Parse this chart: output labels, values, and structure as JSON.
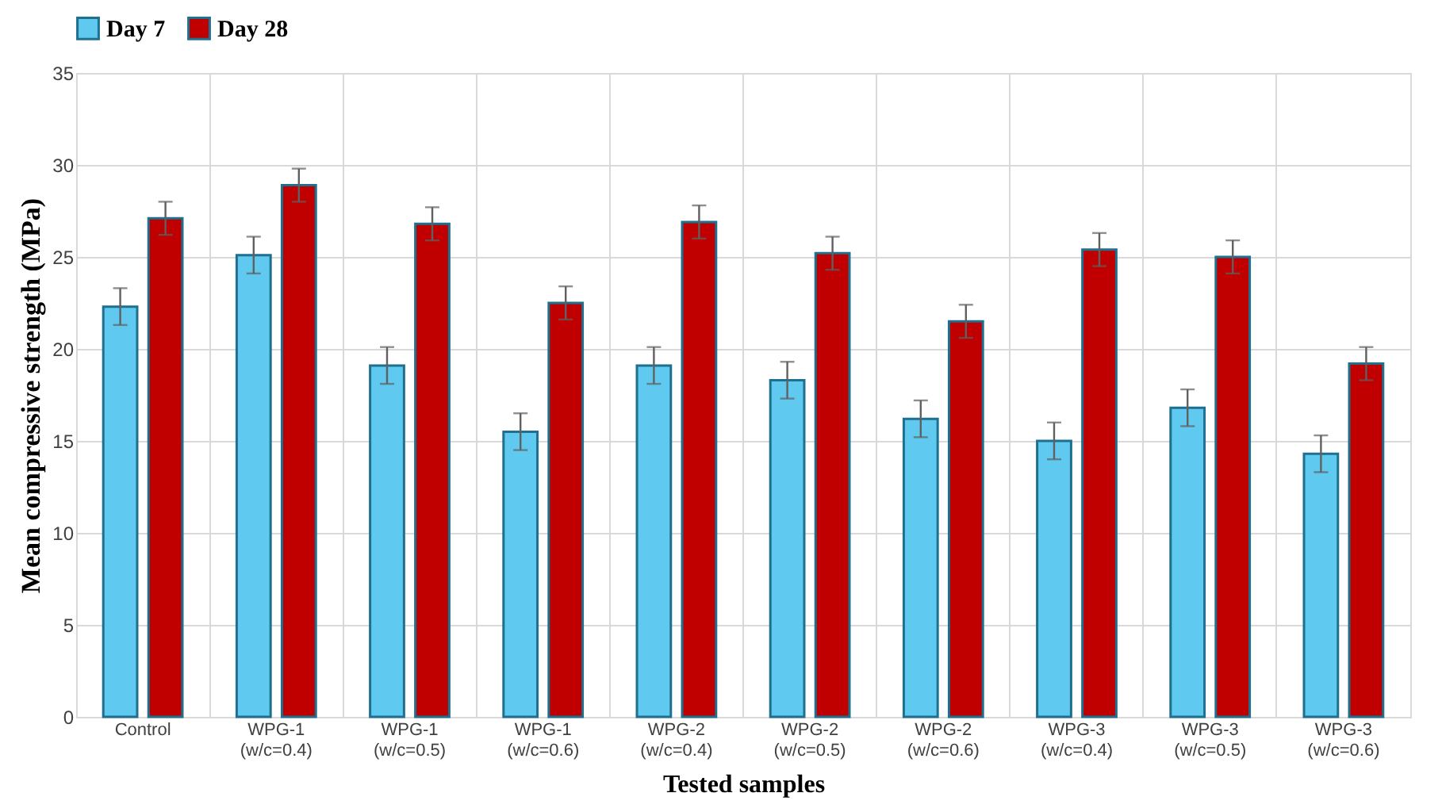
{
  "chart_data": {
    "type": "bar",
    "xlabel": "Tested samples",
    "ylabel": "Mean compressive strength (MPa)",
    "categories": [
      "Control",
      "WPG-1 (w/c=0.4)",
      "WPG-1 (w/c=0.5)",
      "WPG-1 (w/c=0.6)",
      "WPG-2 (w/c=0.4)",
      "WPG-2 (w/c=0.5)",
      "WPG-2 (w/c=0.6)",
      "WPG-3 (w/c=0.4)",
      "WPG-3 (w/c=0.5)",
      "WPG-3 (w/c=0.6)"
    ],
    "series": [
      {
        "name": "Day 7",
        "color": "#5fc9f0",
        "values": [
          22.3,
          25.1,
          19.1,
          15.5,
          19.1,
          18.3,
          16.2,
          15.0,
          16.8,
          14.3
        ],
        "errors": [
          1.0,
          1.0,
          1.0,
          1.0,
          1.0,
          1.0,
          1.0,
          1.0,
          1.0,
          1.0
        ]
      },
      {
        "name": "Day 28",
        "color": "#c00000",
        "values": [
          27.1,
          28.9,
          26.8,
          22.5,
          26.9,
          25.2,
          21.5,
          25.4,
          25.0,
          19.2
        ],
        "errors": [
          0.9,
          0.9,
          0.9,
          0.9,
          0.9,
          0.9,
          0.9,
          0.9,
          0.9,
          0.9
        ]
      }
    ],
    "ylim": [
      0,
      35
    ],
    "yticks": [
      0,
      5,
      10,
      15,
      20,
      25,
      30,
      35
    ],
    "grid": true,
    "legend": "top"
  }
}
